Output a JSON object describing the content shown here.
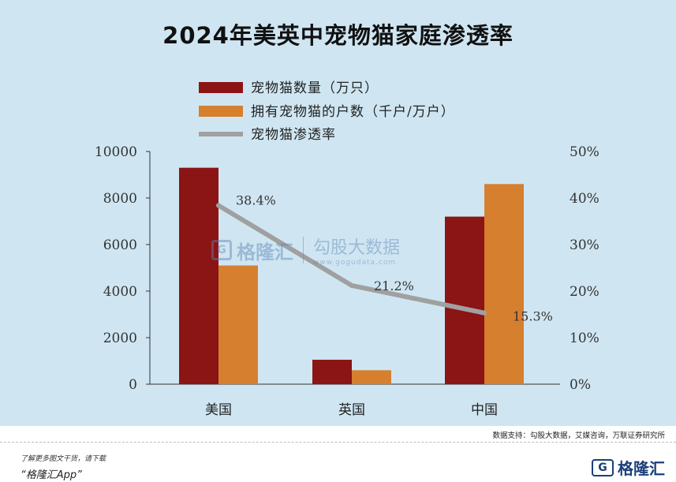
{
  "title": "2024年美英中宠物猫家庭渗透率",
  "chart_data": {
    "type": "bar",
    "categories": [
      "美国",
      "英国",
      "中国"
    ],
    "series": [
      {
        "name": "宠物猫数量（万只）",
        "kind": "bar",
        "axis": "left",
        "color": "#8b1414",
        "values": [
          9300,
          1050,
          7200
        ]
      },
      {
        "name": "拥有宠物猫的户数（千户/万户）",
        "kind": "bar",
        "axis": "left",
        "color": "#d67f2f",
        "values": [
          5100,
          600,
          8600
        ]
      },
      {
        "name": "宠物猫渗透率",
        "kind": "line",
        "axis": "right",
        "color": "#a0a0a0",
        "values": [
          38.4,
          21.2,
          15.3
        ],
        "labels": [
          "38.4%",
          "21.2%",
          "15.3%"
        ]
      }
    ],
    "y_left": {
      "min": 0,
      "max": 10000,
      "ticks": [
        "0",
        "2000",
        "4000",
        "6000",
        "8000",
        "10000"
      ]
    },
    "y_right": {
      "min": 0,
      "max": 50,
      "ticks": [
        "0%",
        "10%",
        "20%",
        "30%",
        "40%",
        "50%"
      ]
    },
    "legend_position": "top-left",
    "grid": false
  },
  "source": "数据支持：勾股大数据，艾媒咨询，万联证券研究所",
  "watermark": {
    "brand": "格隆汇",
    "brand_url": "www.gelonghui.com",
    "partner": "勾股大数据",
    "partner_url": "www.gogudata.com"
  },
  "footer": {
    "promo_line1": "了解更多图文干货，请下载",
    "promo_line2": "“格隆汇App”",
    "brand": "格隆汇"
  }
}
